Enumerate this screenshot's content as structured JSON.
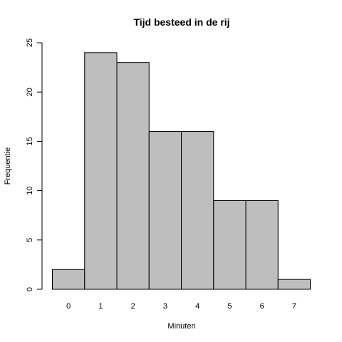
{
  "chart_data": {
    "type": "bar",
    "title": "Tijd besteed in de rij",
    "xlabel": "Minuten",
    "ylabel": "Frequentie",
    "categories": [
      "0",
      "1",
      "2",
      "3",
      "4",
      "5",
      "6",
      "7"
    ],
    "values": [
      2,
      24,
      23,
      16,
      16,
      9,
      9,
      1
    ],
    "ylim": [
      0,
      25
    ],
    "yticks": [
      0,
      5,
      10,
      15,
      20,
      25
    ],
    "grid": false,
    "bar_color": "#bebebe"
  }
}
